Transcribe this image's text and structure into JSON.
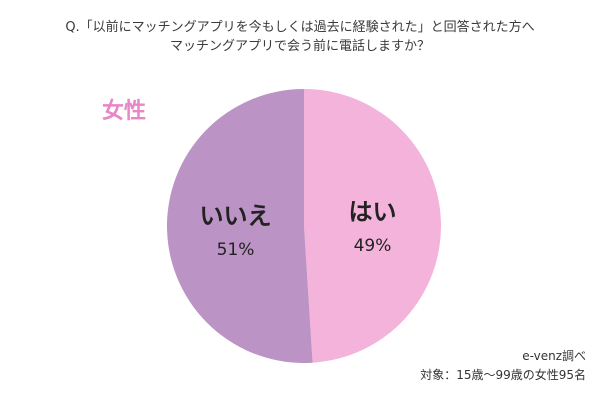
{
  "question": {
    "line1": "Q.「以前にマッチングアプリを今もしくは過去に経験された」と回答された方へ",
    "line2": "マッチングアプリで会う前に電話しますか？"
  },
  "group_label": "女性",
  "chart_data": {
    "type": "pie",
    "slices": [
      {
        "label": "はい",
        "value": 49,
        "display": "49%",
        "color": "#f4b3da"
      },
      {
        "label": "いいえ",
        "value": 51,
        "display": "51%",
        "color": "#bb93c4"
      }
    ],
    "start": "12 o'clock",
    "direction": "clockwise"
  },
  "footer": {
    "source": "e-venz調べ",
    "note": "対象：15歳〜99歳の女性95名"
  }
}
